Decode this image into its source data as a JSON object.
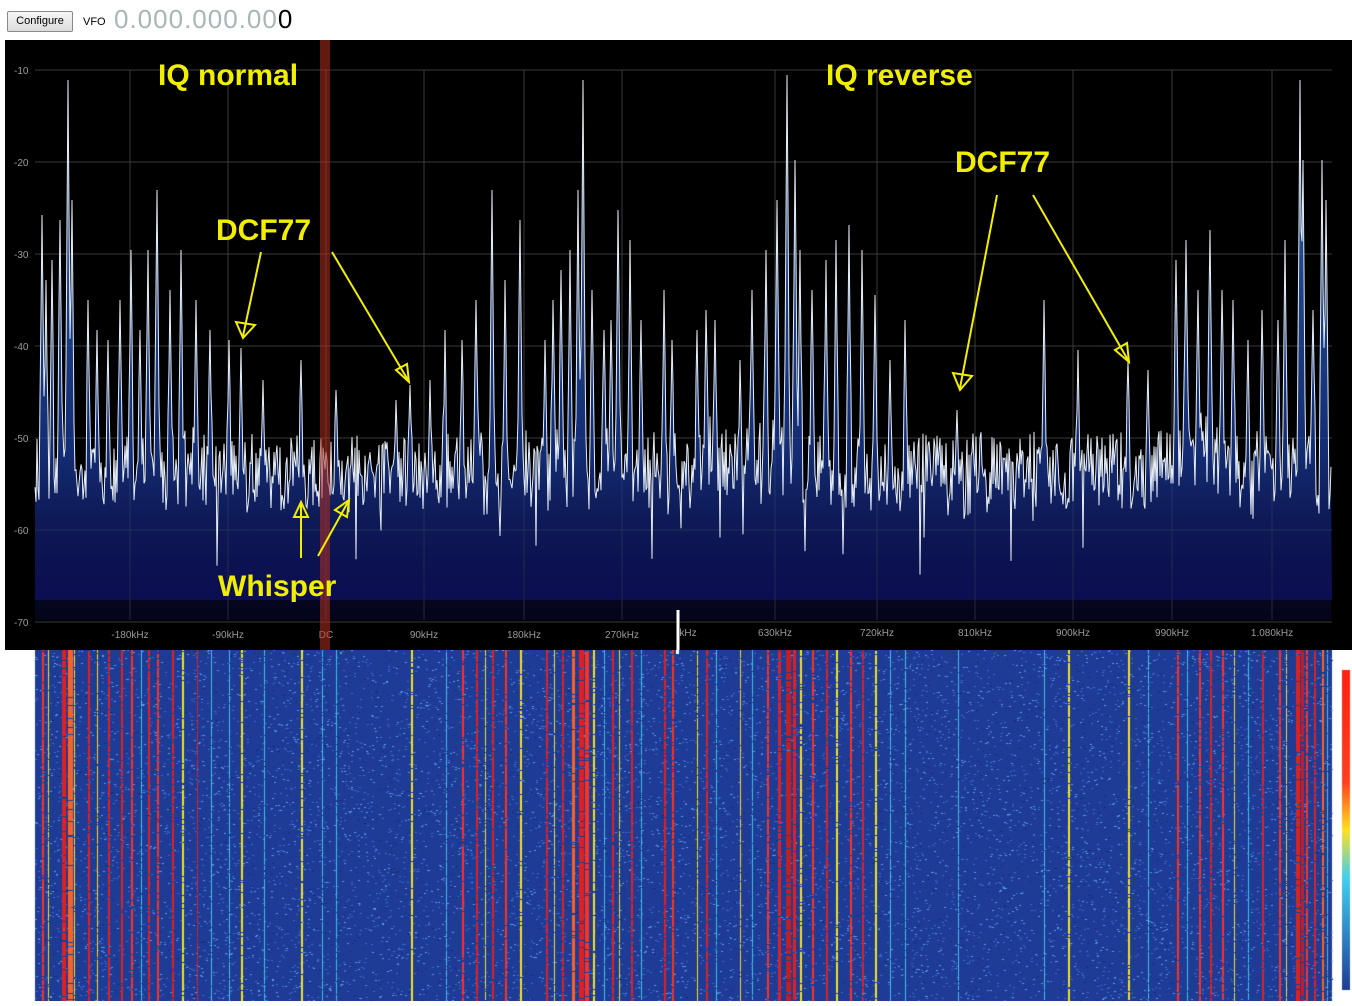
{
  "toolbar": {
    "configure_label": "Configure",
    "vfo_label": "VFO",
    "vfo_value_dim": "0.000.000.00",
    "vfo_value_last": "0"
  },
  "spectrum": {
    "y_ticks": [
      "-10",
      "-20",
      "-30",
      "-40",
      "-50",
      "-60",
      "-70"
    ],
    "x_ticks_left": [
      "-180kHz",
      "-90kHz",
      "DC",
      "90kHz",
      "180kHz",
      "270kHz"
    ],
    "x_ticks_right": [
      "kHz",
      "630kHz",
      "720kHz",
      "810kHz",
      "900kHz",
      "990kHz",
      "1.080kHz"
    ]
  },
  "annotations": {
    "iq_normal": "IQ normal",
    "iq_reverse": "IQ reverse",
    "dcf77_left": "DCF77",
    "dcf77_right": "DCF77",
    "whisper": "Whisper"
  },
  "colors": {
    "annotation": "#f2ee00",
    "spectrum_bg": "#000000",
    "trace": "#e8eef6",
    "waterfall_bg": "#1e3c96",
    "dc_marker": "#b03020"
  }
}
